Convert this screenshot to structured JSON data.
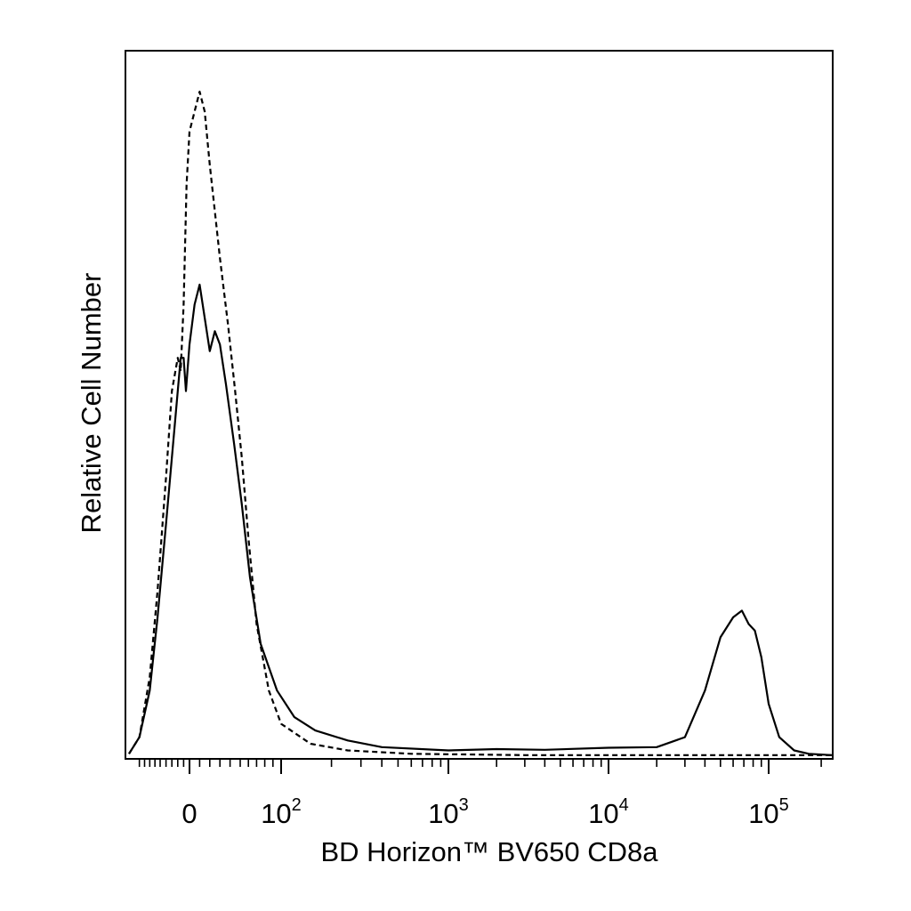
{
  "chart_data": {
    "type": "line",
    "title": "",
    "xlabel": "BD Horizon™ BV650 CD8a",
    "ylabel": "Relative Cell Number",
    "xscale": "biexponential",
    "x_ticks": [
      {
        "value": 0,
        "base": "0",
        "exp": ""
      },
      {
        "value": 100,
        "base": "10",
        "exp": "2"
      },
      {
        "value": 1000,
        "base": "10",
        "exp": "3"
      },
      {
        "value": 10000,
        "base": "10",
        "exp": "4"
      },
      {
        "value": 100000,
        "base": "10",
        "exp": "5"
      }
    ],
    "xlim": [
      -110,
      230000
    ],
    "ylim": [
      0,
      100
    ],
    "grid": false,
    "legend": "none",
    "series": [
      {
        "style": "dashed",
        "points": [
          [
            -110,
            0.5
          ],
          [
            -90,
            3
          ],
          [
            -70,
            12
          ],
          [
            -55,
            25
          ],
          [
            -40,
            42
          ],
          [
            -30,
            55
          ],
          [
            -20,
            60
          ],
          [
            -15,
            58
          ],
          [
            -10,
            68
          ],
          [
            -5,
            86
          ],
          [
            0,
            94
          ],
          [
            5,
            97
          ],
          [
            10,
            100
          ],
          [
            15,
            97
          ],
          [
            20,
            89
          ],
          [
            25,
            82
          ],
          [
            30,
            75
          ],
          [
            38,
            65
          ],
          [
            45,
            55
          ],
          [
            52,
            45
          ],
          [
            60,
            33
          ],
          [
            70,
            20
          ],
          [
            85,
            10
          ],
          [
            100,
            5
          ],
          [
            150,
            2
          ],
          [
            250,
            1
          ],
          [
            600,
            0.5
          ],
          [
            3000,
            0.3
          ],
          [
            30000,
            0.3
          ],
          [
            230000,
            0.3
          ]
        ]
      },
      {
        "style": "solid",
        "points": [
          [
            -110,
            0.5
          ],
          [
            -90,
            3
          ],
          [
            -70,
            10
          ],
          [
            -55,
            21
          ],
          [
            -40,
            35
          ],
          [
            -30,
            45
          ],
          [
            -20,
            55
          ],
          [
            -15,
            60
          ],
          [
            -10,
            60
          ],
          [
            -6,
            55
          ],
          [
            0,
            62
          ],
          [
            5,
            68
          ],
          [
            10,
            71
          ],
          [
            15,
            66
          ],
          [
            20,
            61
          ],
          [
            25,
            64
          ],
          [
            30,
            62
          ],
          [
            36,
            56
          ],
          [
            44,
            47
          ],
          [
            52,
            38
          ],
          [
            62,
            27
          ],
          [
            75,
            17
          ],
          [
            95,
            10
          ],
          [
            120,
            6
          ],
          [
            160,
            4
          ],
          [
            250,
            2.5
          ],
          [
            400,
            1.5
          ],
          [
            1000,
            1
          ],
          [
            2000,
            1.2
          ],
          [
            4000,
            1.1
          ],
          [
            10000,
            1.4
          ],
          [
            20000,
            1.5
          ],
          [
            30000,
            3
          ],
          [
            40000,
            10
          ],
          [
            50000,
            18
          ],
          [
            60000,
            21
          ],
          [
            68000,
            22
          ],
          [
            75000,
            20
          ],
          [
            82000,
            19
          ],
          [
            90000,
            15
          ],
          [
            100000,
            8
          ],
          [
            115000,
            3
          ],
          [
            140000,
            1
          ],
          [
            170000,
            0.5
          ],
          [
            230000,
            0.3
          ]
        ]
      }
    ]
  }
}
